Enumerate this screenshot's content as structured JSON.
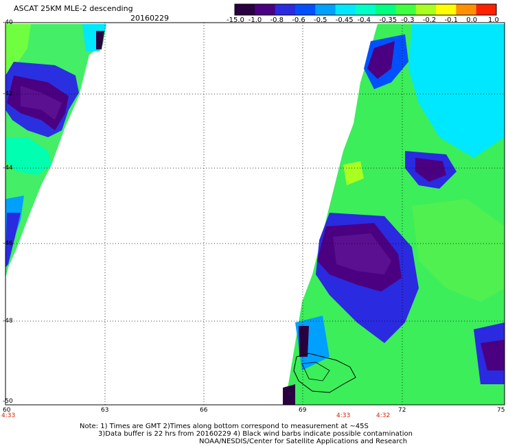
{
  "header": {
    "title": "ASCAT 25KM MLE-2 descending",
    "date": "20160229"
  },
  "colorbar": {
    "labels": [
      "-15.0",
      "-1.0",
      "-0.8",
      "-0.6",
      "-0.5",
      "-0.45",
      "-0.4",
      "-0.35",
      "-0.3",
      "-0.2",
      "-0.1",
      "0.0",
      "1.0"
    ],
    "colors": [
      "#2a0040",
      "#4b0082",
      "#2a2ae0",
      "#0050ff",
      "#00a0ff",
      "#00e8ff",
      "#00ffc8",
      "#00ff80",
      "#40ff40",
      "#a8ff20",
      "#ffff00",
      "#ff9000",
      "#ff2000"
    ]
  },
  "map": {
    "lat_labels": [
      "-40",
      "-42",
      "-44",
      "-46",
      "-48",
      "-50"
    ],
    "lon_labels": [
      "60",
      "63",
      "66",
      "69",
      "72",
      "75"
    ],
    "time_labels": [
      "4:33",
      "4:33",
      "4:32"
    ]
  },
  "notes": {
    "line1": "Note: 1) Times are GMT 2)Times along bottom correspond to measurement at ~45S",
    "line2": "3)Data buffer is 22 hrs from 20160229 4) Black wind barbs indicate possible contamination",
    "line3": "NOAA/NESDIS/Center for Satellite Applications and Research"
  }
}
